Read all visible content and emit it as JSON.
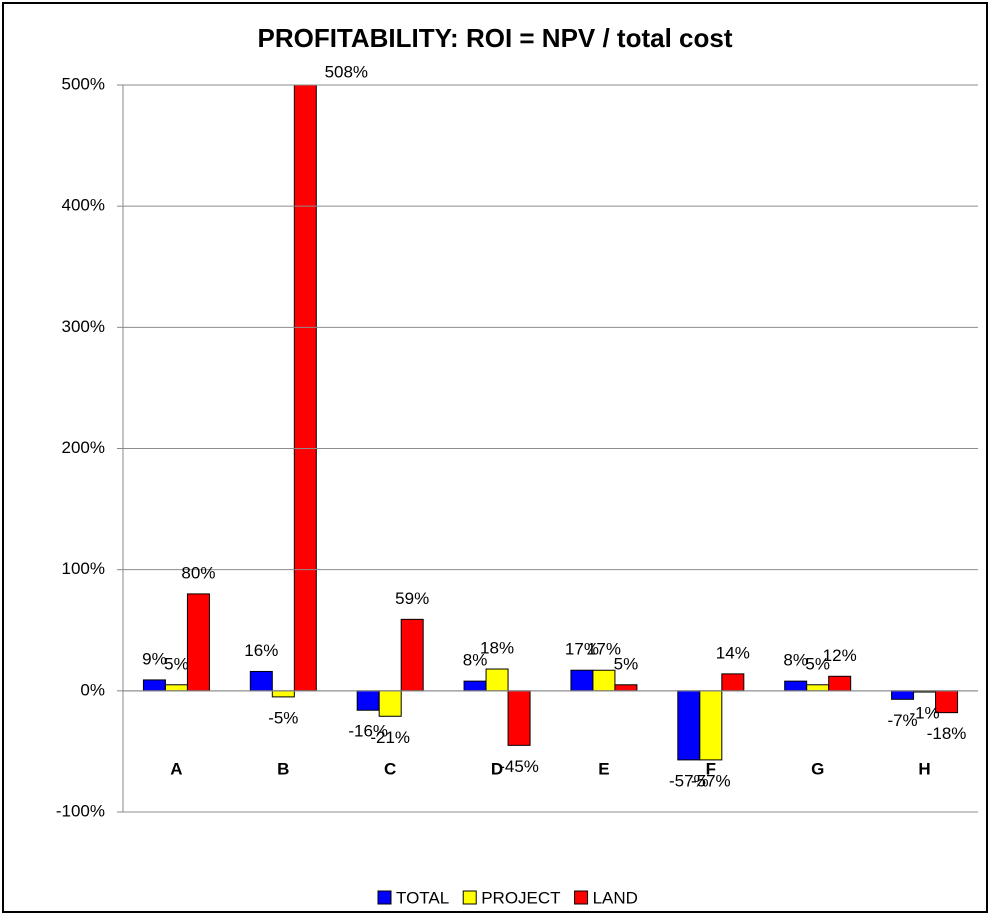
{
  "chart_data": {
    "type": "bar",
    "title": "PROFITABILITY: ROI = NPV / total cost",
    "categories": [
      "A",
      "B",
      "C",
      "D",
      "E",
      "F",
      "G",
      "H"
    ],
    "series": [
      {
        "name": "TOTAL",
        "color": "#0000ff",
        "values": [
          9,
          16,
          -16,
          8,
          17,
          -57,
          8,
          -7
        ],
        "value_labels": [
          "9%",
          "16%",
          "-16%",
          "8%",
          "17%",
          "-57%",
          "8%",
          "-7%"
        ]
      },
      {
        "name": "PROJECT",
        "color": "#ffff00",
        "values": [
          5,
          -5,
          -21,
          18,
          17,
          -57,
          5,
          -1
        ],
        "value_labels": [
          "5%",
          "-5%",
          "-21%",
          "18%",
          "17%",
          "-57%",
          "5%",
          "-1%"
        ]
      },
      {
        "name": "LAND",
        "color": "#ff0000",
        "values": [
          80,
          508,
          59,
          -45,
          5,
          14,
          12,
          -18
        ],
        "value_labels": [
          "80%",
          "508%",
          "59%",
          "-45%",
          "5%",
          "14%",
          "12%",
          "-18%"
        ]
      }
    ],
    "ylim": [
      -100,
      500
    ],
    "yticks": [
      {
        "value": -100,
        "label": "-100%"
      },
      {
        "value": 0,
        "label": "0%"
      },
      {
        "value": 100,
        "label": "100%"
      },
      {
        "value": 200,
        "label": "200%"
      },
      {
        "value": 300,
        "label": "300%"
      },
      {
        "value": 400,
        "label": "400%"
      },
      {
        "value": 500,
        "label": "500%"
      }
    ],
    "grid": true,
    "legend": "bottom"
  }
}
